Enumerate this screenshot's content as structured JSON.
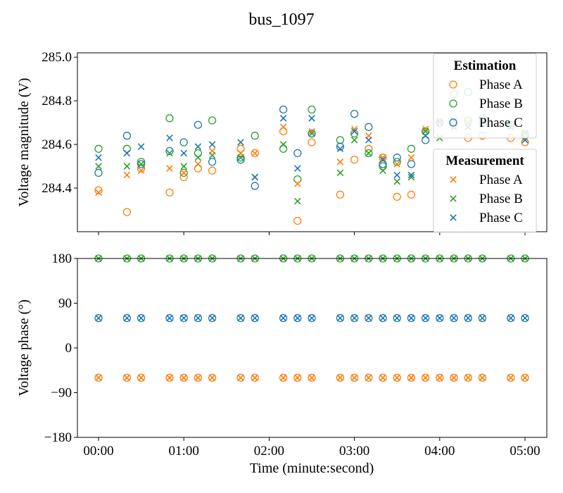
{
  "chart_data": {
    "title": "bus_1097",
    "type": "scatter",
    "colors": {
      "Phase A": "#ff7f0e",
      "Phase B": "#2ca02c",
      "Phase C": "#1f77b4"
    },
    "x_unit": "minute:second",
    "x_times": [
      "00:00",
      "00:20",
      "00:30",
      "00:50",
      "01:00",
      "01:10",
      "01:20",
      "01:40",
      "01:50",
      "02:10",
      "02:20",
      "02:30",
      "02:50",
      "03:00",
      "03:10",
      "03:20",
      "03:30",
      "03:40",
      "03:50",
      "04:00",
      "04:10",
      "04:20",
      "04:30",
      "04:50",
      "05:00"
    ],
    "xlabel": "Time (minute:second)",
    "xticks": [
      "00:00",
      "01:00",
      "02:00",
      "03:00",
      "04:00",
      "05:00"
    ],
    "panels": [
      {
        "id": "magnitude",
        "ylabel": "Voltage magnitude (V)",
        "ylim": [
          284.2,
          285.02
        ],
        "yticks": [
          "284.4",
          "284.6",
          "284.8",
          "285.0"
        ],
        "ytick_values": [
          284.4,
          284.6,
          284.8,
          285.0
        ],
        "legends": [
          {
            "title": "Estimation",
            "marker": "circle",
            "entries": [
              "Phase A",
              "Phase B",
              "Phase C"
            ]
          },
          {
            "title": "Measurement",
            "marker": "x",
            "entries": [
              "Phase A",
              "Phase B",
              "Phase C"
            ]
          }
        ],
        "estimation": {
          "Phase A": [
            284.39,
            284.29,
            284.49,
            284.38,
            284.45,
            284.49,
            284.48,
            284.58,
            284.56,
            284.66,
            284.25,
            284.61,
            284.37,
            284.53,
            284.58,
            284.54,
            284.36,
            284.37,
            284.66,
            284.7,
            284.69,
            284.63,
            284.64,
            284.63,
            284.61
          ],
          "Phase B": [
            284.58,
            284.58,
            284.52,
            284.72,
            284.47,
            284.56,
            284.71,
            284.54,
            284.64,
            284.58,
            284.44,
            284.76,
            284.62,
            284.65,
            284.56,
            284.5,
            284.52,
            284.58,
            284.66,
            284.7,
            284.7,
            284.71,
            284.7,
            284.69,
            284.65
          ],
          "Phase C": [
            284.47,
            284.64,
            284.51,
            284.57,
            284.61,
            284.69,
            284.52,
            284.53,
            284.41,
            284.76,
            284.56,
            284.65,
            284.59,
            284.74,
            284.68,
            284.51,
            284.54,
            284.51,
            284.62,
            284.7,
            284.83,
            284.84,
            284.72,
            284.69,
            284.64
          ]
        },
        "measurement": {
          "Phase A": [
            284.38,
            284.46,
            284.48,
            284.49,
            284.47,
            284.51,
            284.57,
            284.56,
            284.56,
            284.68,
            284.42,
            284.66,
            284.52,
            284.67,
            284.64,
            284.54,
            284.51,
            284.54,
            284.67,
            284.71,
            284.69,
            284.7,
            284.71,
            284.68,
            284.63
          ],
          "Phase B": [
            284.5,
            284.5,
            284.51,
            284.56,
            284.5,
            284.54,
            284.55,
            284.54,
            284.45,
            284.6,
            284.34,
            284.65,
            284.47,
            284.62,
            284.56,
            284.48,
            284.43,
            284.45,
            284.66,
            284.63,
            284.68,
            284.68,
            284.7,
            284.68,
            284.65
          ],
          "Phase C": [
            284.54,
            284.56,
            284.59,
            284.63,
            284.56,
            284.59,
            284.6,
            284.61,
            284.45,
            284.72,
            284.49,
            284.72,
            284.58,
            284.66,
            284.62,
            284.53,
            284.46,
            284.46,
            284.64,
            284.7,
            284.71,
            284.68,
            284.71,
            284.68,
            284.62
          ]
        }
      },
      {
        "id": "phase",
        "ylabel": "Voltage phase (°)",
        "ylim": [
          -180,
          180
        ],
        "yticks": [
          "180",
          "90",
          "0",
          "−90",
          "−180"
        ],
        "ytick_values": [
          180,
          90,
          0,
          -90,
          -180
        ],
        "series_constant": {
          "Phase A": -60,
          "Phase B": 180,
          "Phase C": 60
        },
        "markers": [
          "circle",
          "x"
        ]
      }
    ]
  }
}
